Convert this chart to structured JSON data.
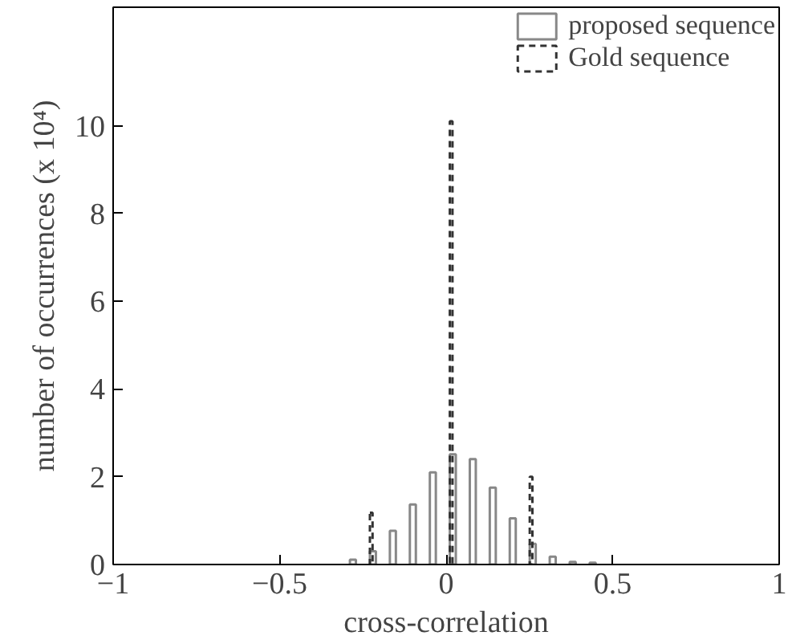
{
  "chart_data": {
    "type": "bar",
    "xlabel": "cross-correlation",
    "ylabel": "number of occurrences (x 10⁴)",
    "xlim": [
      -1,
      1
    ],
    "xticks": [
      -1,
      -0.5,
      0,
      0.5,
      1
    ],
    "ylim": [
      0,
      12.7
    ],
    "yticks": [
      0,
      2,
      4,
      6,
      8,
      10
    ],
    "grid": false,
    "legend": "top right",
    "series": [
      {
        "name": "proposed sequence",
        "color": "#888888",
        "line_style": "solid",
        "x": [
          -0.28,
          -0.22,
          -0.16,
          -0.1,
          -0.04,
          0.02,
          0.08,
          0.14,
          0.2,
          0.26,
          0.32,
          0.38,
          0.44
        ],
        "values": [
          0.11,
          0.3,
          0.77,
          1.37,
          2.1,
          2.51,
          2.4,
          1.75,
          1.05,
          0.47,
          0.18,
          0.06,
          0.04
        ]
      },
      {
        "name": "Gold sequence",
        "color": "#333333",
        "line_style": "dashed",
        "x": [
          -0.225,
          0.015,
          0.255
        ],
        "values": [
          1.18,
          10.1,
          2.0
        ]
      }
    ]
  }
}
